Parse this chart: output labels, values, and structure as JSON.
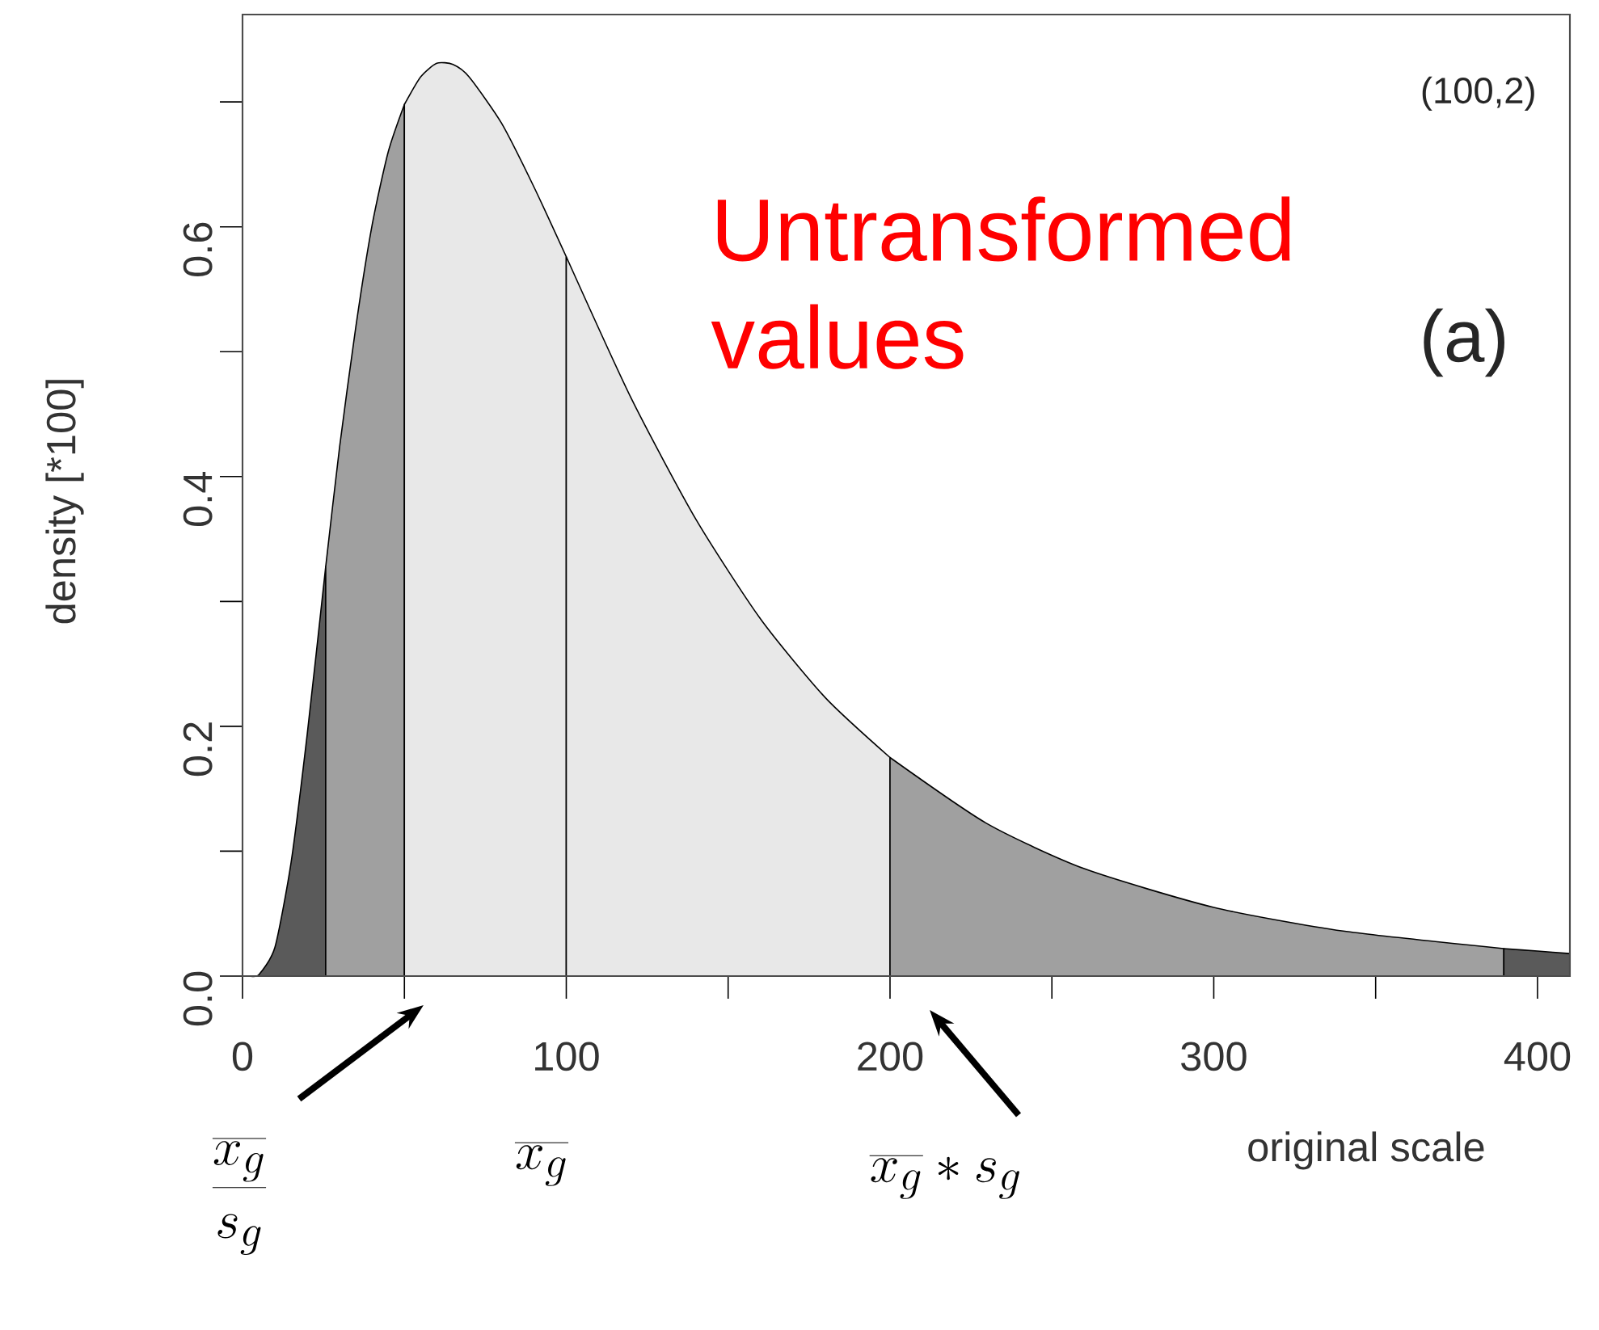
{
  "chart_data": {
    "type": "area",
    "xlabel": "original scale",
    "ylabel": "density [*100]",
    "xlim": [
      0,
      410
    ],
    "ylim": [
      0,
      0.77
    ],
    "xticks": [
      0,
      {
        "value": 50,
        "label": null
      },
      100,
      {
        "value": 150,
        "label": null
      },
      200,
      {
        "value": 250,
        "label": null
      },
      300,
      {
        "value": 350,
        "label": null
      },
      400
    ],
    "yticks": [
      {
        "value": 0,
        "label": "0.0"
      },
      {
        "value": 0.1,
        "label": null
      },
      {
        "value": 0.2,
        "label": "0.2"
      },
      {
        "value": 0.3,
        "label": null
      },
      {
        "value": 0.4,
        "label": "0.4"
      },
      {
        "value": 0.5,
        "label": null
      },
      {
        "value": 0.6,
        "label": "0.6"
      },
      {
        "value": 0.7,
        "label": null
      }
    ],
    "series": [
      {
        "color": "#5a5a5a",
        "x": [
          0,
          2,
          5,
          10,
          15,
          20,
          25.7
        ],
        "values": [
          0,
          0.0,
          0.001,
          0.023,
          0.091,
          0.194,
          0.328
        ]
      },
      {
        "color": "#a0a0a0",
        "x": [
          25.7,
          30,
          35,
          40,
          45,
          50
        ],
        "values": [
          0.328,
          0.424,
          0.52,
          0.601,
          0.66,
          0.698
        ]
      },
      {
        "color": "#e8e8e8",
        "x": [
          50,
          55,
          60,
          65,
          70,
          80,
          90,
          100
        ],
        "values": [
          0.698,
          0.72,
          0.731,
          0.73,
          0.72,
          0.683,
          0.632,
          0.576
        ]
      },
      {
        "color": "#e8e8e8",
        "x": [
          100,
          120,
          140,
          160,
          180,
          200
        ],
        "values": [
          0.576,
          0.463,
          0.366,
          0.286,
          0.223,
          0.175
        ]
      },
      {
        "color": "#a0a0a0",
        "x": [
          200,
          230,
          260,
          300,
          340,
          389.6
        ],
        "values": [
          0.175,
          0.122,
          0.086,
          0.055,
          0.036,
          0.022
        ]
      },
      {
        "color": "#5a5a5a",
        "x": [
          389.6,
          400,
          410
        ],
        "values": [
          0.022,
          0.02,
          0.018
        ]
      }
    ],
    "annotations": [
      "(100,2)",
      "Untransformed values",
      "(a)",
      "\\frac{\\overline{x_g}}{s_g}",
      "\\overline{x_g}",
      "\\overline{x_g} * s_g"
    ]
  }
}
